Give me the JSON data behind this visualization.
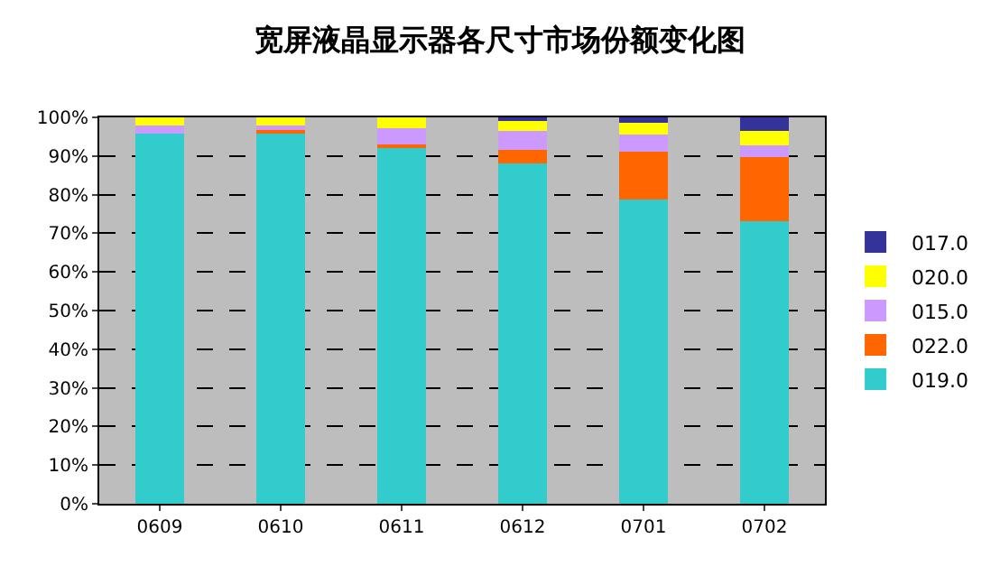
{
  "chart_data": {
    "type": "bar",
    "title": "宽屏液晶显示器各尺寸市场份额变化图",
    "stacked": true,
    "categories": [
      "0609",
      "0610",
      "0611",
      "0612",
      "0701",
      "0702"
    ],
    "series": [
      {
        "name": "019.0",
        "color": "#33cccc",
        "values": [
          95.7,
          96.0,
          92.1,
          88.2,
          78.8,
          73.2
        ]
      },
      {
        "name": "022.0",
        "color": "#ff6600",
        "values": [
          0,
          0.8,
          1.0,
          3.4,
          12.3,
          16.5
        ]
      },
      {
        "name": "015.0",
        "color": "#cc99ff",
        "values": [
          2.2,
          1.0,
          4.0,
          4.9,
          4.5,
          3.1
        ]
      },
      {
        "name": "020.0",
        "color": "#ffff00",
        "values": [
          2.1,
          2.2,
          2.9,
          2.9,
          3.1,
          3.7
        ]
      },
      {
        "name": "017.0",
        "color": "#333399",
        "values": [
          0,
          0,
          0,
          0.6,
          1.3,
          3.5
        ]
      }
    ],
    "ylim": [
      0,
      100
    ],
    "yticks": [
      {
        "value": 0,
        "label": "0%"
      },
      {
        "value": 10,
        "label": "10%"
      },
      {
        "value": 20,
        "label": "20%"
      },
      {
        "value": 30,
        "label": "30%"
      },
      {
        "value": 40,
        "label": "40%"
      },
      {
        "value": 50,
        "label": "50%"
      },
      {
        "value": 60,
        "label": "60%"
      },
      {
        "value": 70,
        "label": "70%"
      },
      {
        "value": 80,
        "label": "80%"
      },
      {
        "value": 90,
        "label": "90%"
      },
      {
        "value": 100,
        "label": "100%"
      }
    ],
    "grid": "y",
    "legend": "right"
  }
}
